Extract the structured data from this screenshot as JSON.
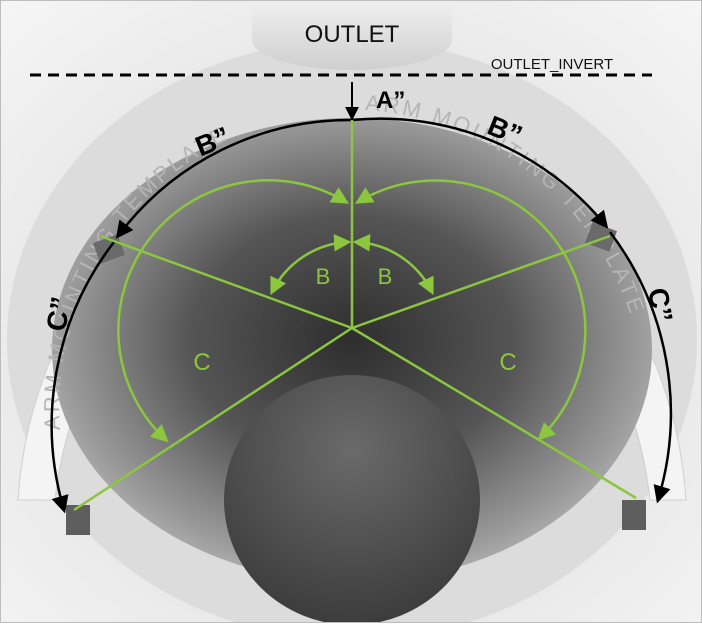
{
  "labels": {
    "outlet": "OUTLET",
    "outlet_invert": "OUTLET_INVERT",
    "a_arc": "A”",
    "b_arc_left": "B”",
    "b_arc_right": "B”",
    "c_arc_left": "C”",
    "c_arc_right": "C”",
    "b_angle_left": "B",
    "b_angle_right": "B",
    "c_angle_left": "C",
    "c_angle_right": "C"
  },
  "template_text": {
    "left": "ARM MOUNTING TEMPLATE",
    "right": "ARM MOUNTING TEMPLATE"
  },
  "colors": {
    "angle_lines": "#8cc63f",
    "arc_arrows": "#000000",
    "dashed_line": "#000000"
  }
}
